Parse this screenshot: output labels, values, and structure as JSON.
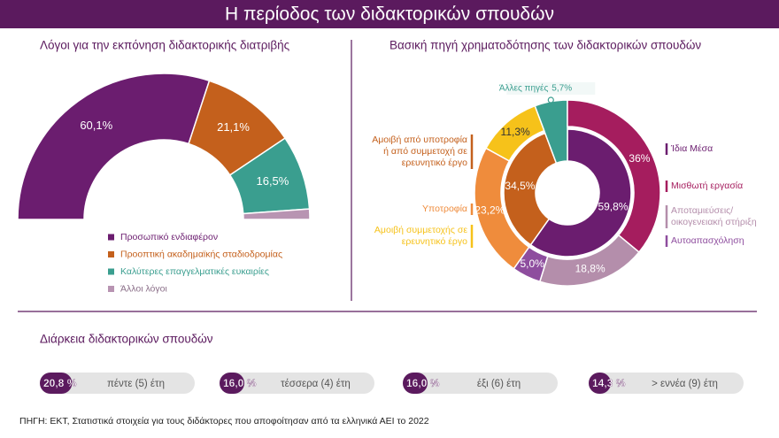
{
  "header": {
    "title": "Η περίοδος των διδακτορικών σπουδών"
  },
  "chart_data": [
    {
      "type": "semi-donut",
      "title": "Λόγοι για την εκπόνηση διδακτορικής διατριβής",
      "categories": [
        "Προσωπικό ενδιαφέρον",
        "Προοπτική ακαδημαϊκής σταδιοδρομίας",
        "Καλύτερες επαγγελματικές ευκαιρίες",
        "Άλλοι λόγοι"
      ],
      "values": [
        60.1,
        21.1,
        16.5,
        2.3
      ],
      "value_labels": [
        "60,1%",
        "21,1%",
        "16,5%",
        null
      ],
      "colors": [
        "#6b1d6f",
        "#c4601c",
        "#3a9e8f",
        "#b894b2"
      ]
    },
    {
      "type": "nested-donut",
      "title": "Βασική πηγή χρηματοδότησης των διδακτορικών σπουδών",
      "inner": {
        "categories": [
          "Ίδια Μέσα",
          "Αμοιβή από υποτροφία ή από συμμετοχή σε ερευνητικό έργο",
          "Άλλες πηγές"
        ],
        "values": [
          59.8,
          34.5,
          5.7
        ],
        "value_labels": [
          "59,8%",
          "34,5%",
          "5,7%"
        ],
        "colors": [
          "#6b1d6f",
          "#c4601c",
          "#3a9e8f"
        ]
      },
      "outer": {
        "categories": [
          "Μισθωτή εργασία",
          "Αποταμιεύσεις/ οικογενειακή στήριξη",
          "Αυτοαπασχόληση",
          "Υποτροφία",
          "Αμοιβή συμμετοχής σε ερευνητικό έργο"
        ],
        "values": [
          36,
          18.8,
          5.0,
          23.2,
          11.3
        ],
        "value_labels": [
          "36%",
          "18,8%",
          "5,0%",
          "23,2%",
          "11,3%"
        ],
        "colors": [
          "#a51d5e",
          "#b48eab",
          "#8e4d9e",
          "#ef8c3c",
          "#f6c21a"
        ]
      }
    },
    {
      "type": "progress",
      "title": "Διάρκεια διδακτορικών σπουδών",
      "categories": [
        "πέντε (5) έτη",
        "τέσσερα (4) έτη",
        "έξι (6) έτη",
        "> εννέα (9) έτη"
      ],
      "values": [
        20.8,
        16.0,
        16.0,
        14.3
      ],
      "value_labels": [
        "20,8 %",
        "16,0 %",
        "16,0 %",
        "14,3 %"
      ],
      "xlim": [
        0,
        100
      ],
      "color": "#5b1a5e",
      "track_color": "#e4e4e4"
    }
  ],
  "source": "ΠΗΓΗ: ΕΚΤ, Στατιστικά στοιχεία για τους διδάκτορες που αποφοίτησαν από τα ελληνικά ΑΕΙ το 2022"
}
